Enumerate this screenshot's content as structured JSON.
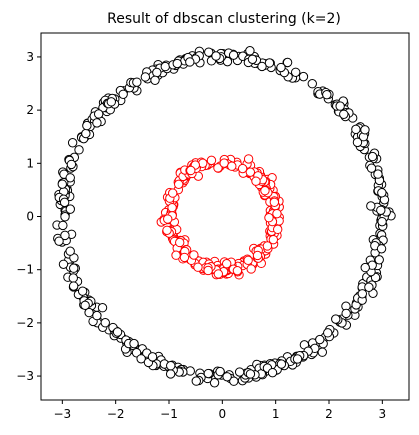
{
  "chart_data": {
    "type": "scatter",
    "title": "Result of dbscan clustering (k=2)",
    "xlabel": "",
    "ylabel": "",
    "xlim": [
      -3.4,
      3.5
    ],
    "ylim": [
      -3.45,
      3.45
    ],
    "x_ticks": [
      -3,
      -2,
      -1,
      0,
      1,
      2,
      3
    ],
    "y_ticks": [
      -3,
      -2,
      -1,
      0,
      1,
      2,
      3
    ],
    "x_tick_labels": [
      "−3",
      "−2",
      "−1",
      "0",
      "1",
      "2",
      "3"
    ],
    "y_tick_labels": [
      "−3",
      "−2",
      "−1",
      "0",
      "1",
      "2",
      "3"
    ],
    "grid": false,
    "marker": "circle",
    "marker_fill": "#ffffff",
    "series": [
      {
        "edge_color": "#000000",
        "shape": "ring",
        "center": [
          0,
          0
        ],
        "radius": 3.0,
        "noise": 0.06,
        "n_points": 500
      },
      {
        "edge_color": "#ff0000",
        "shape": "ring",
        "center": [
          0,
          0
        ],
        "radius": 1.0,
        "noise": 0.06,
        "n_points": 300
      }
    ]
  }
}
